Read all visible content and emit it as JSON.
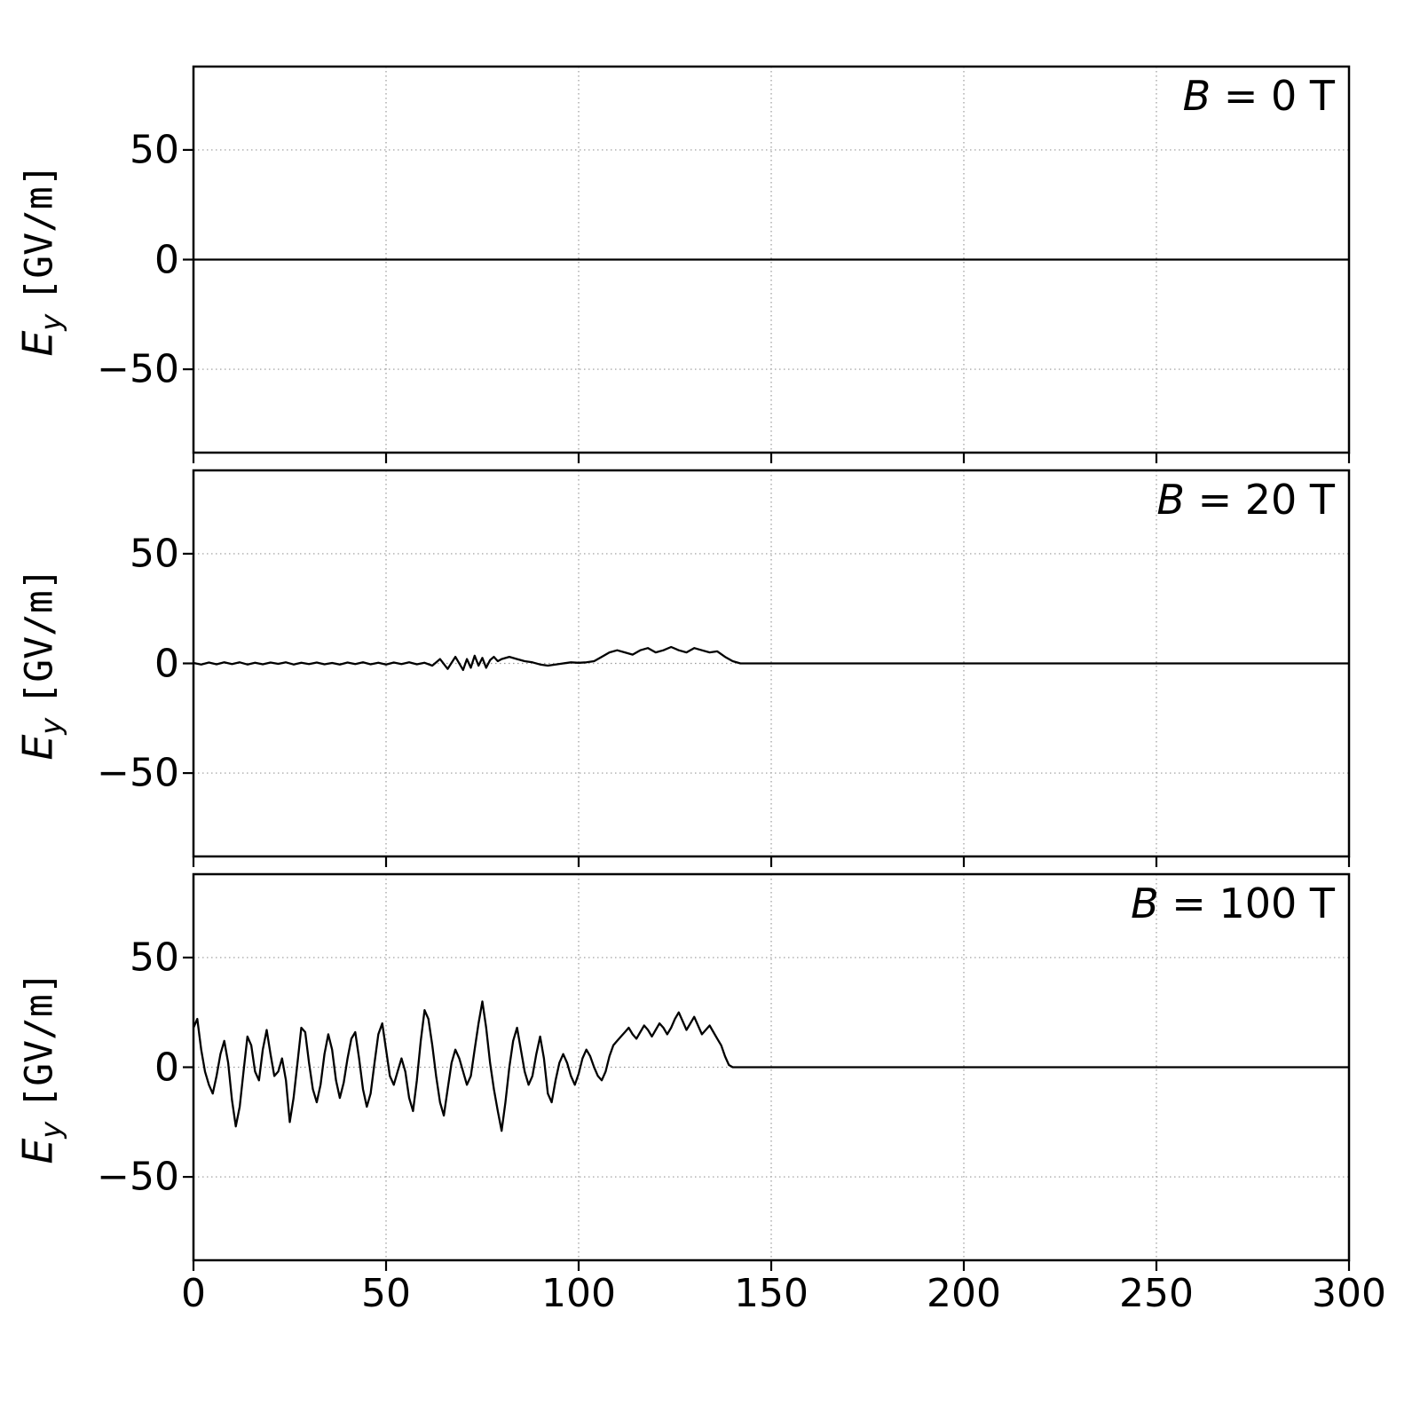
{
  "figure": {
    "ylabel_var": "E",
    "ylabel_sub": "y",
    "ylabel_unit": "[GV/m]",
    "line_color": "#000000",
    "grid_color": "#999999",
    "background": "#ffffff"
  },
  "chart_data": [
    {
      "type": "line",
      "annotation_var": "B",
      "annotation_rest": " = 0 T",
      "xlabel": "",
      "ylabel": "E_y [GV/m]",
      "xlim": [
        0,
        300
      ],
      "ylim": [
        -88,
        88
      ],
      "xticks": [
        0,
        50,
        100,
        150,
        200,
        250,
        300
      ],
      "yticks": [
        -50,
        0,
        50
      ],
      "grid": true,
      "legend": "none",
      "points": [
        [
          0,
          0
        ],
        [
          300,
          0
        ]
      ]
    },
    {
      "type": "line",
      "annotation_var": "B",
      "annotation_rest": " = 20 T",
      "xlabel": "",
      "ylabel": "E_y [GV/m]",
      "xlim": [
        0,
        300
      ],
      "ylim": [
        -88,
        88
      ],
      "xticks": [
        0,
        50,
        100,
        150,
        200,
        250,
        300
      ],
      "yticks": [
        -50,
        0,
        50
      ],
      "grid": true,
      "legend": "none",
      "points": [
        [
          0,
          0.2
        ],
        [
          2,
          -0.5
        ],
        [
          4,
          0.4
        ],
        [
          6,
          -0.4
        ],
        [
          8,
          0.5
        ],
        [
          10,
          -0.3
        ],
        [
          12,
          0.5
        ],
        [
          14,
          -0.5
        ],
        [
          16,
          0.3
        ],
        [
          18,
          -0.4
        ],
        [
          20,
          0.4
        ],
        [
          22,
          -0.2
        ],
        [
          24,
          0.5
        ],
        [
          26,
          -0.5
        ],
        [
          28,
          0.3
        ],
        [
          30,
          -0.3
        ],
        [
          32,
          0.4
        ],
        [
          34,
          -0.4
        ],
        [
          36,
          0.2
        ],
        [
          38,
          -0.5
        ],
        [
          40,
          0.4
        ],
        [
          42,
          -0.3
        ],
        [
          44,
          0.5
        ],
        [
          46,
          -0.4
        ],
        [
          48,
          0.3
        ],
        [
          50,
          -0.5
        ],
        [
          52,
          0.4
        ],
        [
          54,
          -0.3
        ],
        [
          56,
          0.5
        ],
        [
          58,
          -0.4
        ],
        [
          60,
          0.3
        ],
        [
          62,
          -1.0
        ],
        [
          64,
          2.0
        ],
        [
          66,
          -2.5
        ],
        [
          68,
          3.0
        ],
        [
          70,
          -3.0
        ],
        [
          71,
          2.0
        ],
        [
          72,
          -2.0
        ],
        [
          73,
          3.5
        ],
        [
          74,
          -1.0
        ],
        [
          75,
          2.5
        ],
        [
          76,
          -2.0
        ],
        [
          77,
          1.5
        ],
        [
          78,
          3.0
        ],
        [
          79,
          1.0
        ],
        [
          80,
          2.0
        ],
        [
          82,
          3.0
        ],
        [
          84,
          2.0
        ],
        [
          86,
          1.0
        ],
        [
          88,
          0.5
        ],
        [
          90,
          -0.5
        ],
        [
          92,
          -1.0
        ],
        [
          94,
          -0.5
        ],
        [
          96,
          0.0
        ],
        [
          98,
          0.5
        ],
        [
          100,
          0.3
        ],
        [
          102,
          0.5
        ],
        [
          104,
          1.0
        ],
        [
          106,
          3.0
        ],
        [
          108,
          5.0
        ],
        [
          110,
          6.0
        ],
        [
          112,
          5.0
        ],
        [
          114,
          4.0
        ],
        [
          116,
          6.0
        ],
        [
          118,
          7.0
        ],
        [
          120,
          5.0
        ],
        [
          122,
          6.0
        ],
        [
          124,
          7.5
        ],
        [
          126,
          6.0
        ],
        [
          128,
          5.0
        ],
        [
          130,
          7.0
        ],
        [
          132,
          6.0
        ],
        [
          134,
          5.0
        ],
        [
          136,
          5.5
        ],
        [
          138,
          3.0
        ],
        [
          140,
          1.0
        ],
        [
          142,
          0.0
        ],
        [
          160,
          0.0
        ],
        [
          200,
          0.0
        ],
        [
          250,
          0.0
        ],
        [
          300,
          0.0
        ]
      ]
    },
    {
      "type": "line",
      "annotation_var": "B",
      "annotation_rest": " = 100 T",
      "xlabel": "",
      "ylabel": "E_y [GV/m]",
      "xlim": [
        0,
        300
      ],
      "ylim": [
        -88,
        88
      ],
      "xticks": [
        0,
        50,
        100,
        150,
        200,
        250,
        300
      ],
      "yticks": [
        -50,
        0,
        50
      ],
      "grid": true,
      "legend": "none",
      "points": [
        [
          0,
          18
        ],
        [
          1,
          22
        ],
        [
          2,
          8
        ],
        [
          3,
          -2
        ],
        [
          4,
          -8
        ],
        [
          5,
          -12
        ],
        [
          6,
          -4
        ],
        [
          7,
          6
        ],
        [
          8,
          12
        ],
        [
          9,
          2
        ],
        [
          10,
          -15
        ],
        [
          11,
          -27
        ],
        [
          12,
          -18
        ],
        [
          13,
          -2
        ],
        [
          14,
          14
        ],
        [
          15,
          10
        ],
        [
          16,
          -2
        ],
        [
          17,
          -6
        ],
        [
          18,
          8
        ],
        [
          19,
          17
        ],
        [
          20,
          6
        ],
        [
          21,
          -4
        ],
        [
          22,
          -2
        ],
        [
          23,
          4
        ],
        [
          24,
          -6
        ],
        [
          25,
          -25
        ],
        [
          26,
          -14
        ],
        [
          27,
          2
        ],
        [
          28,
          18
        ],
        [
          29,
          16
        ],
        [
          30,
          2
        ],
        [
          31,
          -10
        ],
        [
          32,
          -16
        ],
        [
          33,
          -8
        ],
        [
          34,
          6
        ],
        [
          35,
          15
        ],
        [
          36,
          8
        ],
        [
          37,
          -6
        ],
        [
          38,
          -14
        ],
        [
          39,
          -7
        ],
        [
          40,
          4
        ],
        [
          41,
          13
        ],
        [
          42,
          16
        ],
        [
          43,
          4
        ],
        [
          44,
          -10
        ],
        [
          45,
          -18
        ],
        [
          46,
          -12
        ],
        [
          47,
          2
        ],
        [
          48,
          15
        ],
        [
          49,
          20
        ],
        [
          50,
          8
        ],
        [
          51,
          -4
        ],
        [
          52,
          -8
        ],
        [
          53,
          -2
        ],
        [
          54,
          4
        ],
        [
          55,
          -2
        ],
        [
          56,
          -14
        ],
        [
          57,
          -20
        ],
        [
          58,
          -6
        ],
        [
          59,
          12
        ],
        [
          60,
          26
        ],
        [
          61,
          22
        ],
        [
          62,
          10
        ],
        [
          63,
          -4
        ],
        [
          64,
          -16
        ],
        [
          65,
          -22
        ],
        [
          66,
          -10
        ],
        [
          67,
          2
        ],
        [
          68,
          8
        ],
        [
          69,
          4
        ],
        [
          70,
          -2
        ],
        [
          71,
          -8
        ],
        [
          72,
          -4
        ],
        [
          73,
          8
        ],
        [
          74,
          20
        ],
        [
          75,
          30
        ],
        [
          76,
          18
        ],
        [
          77,
          2
        ],
        [
          78,
          -10
        ],
        [
          79,
          -20
        ],
        [
          80,
          -29
        ],
        [
          81,
          -16
        ],
        [
          82,
          0
        ],
        [
          83,
          12
        ],
        [
          84,
          18
        ],
        [
          85,
          8
        ],
        [
          86,
          -2
        ],
        [
          87,
          -8
        ],
        [
          88,
          -4
        ],
        [
          89,
          6
        ],
        [
          90,
          14
        ],
        [
          91,
          4
        ],
        [
          92,
          -12
        ],
        [
          93,
          -16
        ],
        [
          94,
          -6
        ],
        [
          95,
          2
        ],
        [
          96,
          6
        ],
        [
          97,
          2
        ],
        [
          98,
          -4
        ],
        [
          99,
          -8
        ],
        [
          100,
          -3
        ],
        [
          101,
          4
        ],
        [
          102,
          8
        ],
        [
          103,
          5
        ],
        [
          104,
          0
        ],
        [
          105,
          -4
        ],
        [
          106,
          -6
        ],
        [
          107,
          -2
        ],
        [
          108,
          5
        ],
        [
          109,
          10
        ],
        [
          110,
          12
        ],
        [
          111,
          14
        ],
        [
          112,
          16
        ],
        [
          113,
          18
        ],
        [
          114,
          15
        ],
        [
          115,
          13
        ],
        [
          116,
          16
        ],
        [
          117,
          19
        ],
        [
          118,
          17
        ],
        [
          119,
          14
        ],
        [
          120,
          17
        ],
        [
          121,
          20
        ],
        [
          122,
          18
        ],
        [
          123,
          15
        ],
        [
          124,
          18
        ],
        [
          125,
          22
        ],
        [
          126,
          25
        ],
        [
          127,
          21
        ],
        [
          128,
          17
        ],
        [
          129,
          20
        ],
        [
          130,
          23
        ],
        [
          131,
          19
        ],
        [
          132,
          15
        ],
        [
          133,
          17
        ],
        [
          134,
          19
        ],
        [
          135,
          16
        ],
        [
          136,
          13
        ],
        [
          137,
          10
        ],
        [
          138,
          5
        ],
        [
          139,
          1
        ],
        [
          140,
          0
        ],
        [
          160,
          0
        ],
        [
          200,
          0
        ],
        [
          250,
          0
        ],
        [
          300,
          0
        ]
      ]
    }
  ]
}
